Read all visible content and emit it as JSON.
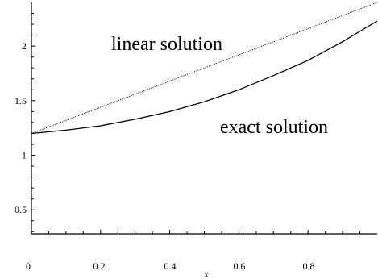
{
  "chart_data": {
    "type": "line",
    "xlabel": "x",
    "ylabel": "",
    "xlim": [
      0,
      1
    ],
    "ylim": [
      0.28,
      2.4
    ],
    "grid": false,
    "x_ticks": [
      0,
      0.2,
      0.4,
      0.6,
      0.8
    ],
    "x_tick_labels": [
      "0",
      "0.2",
      "0.4",
      "0.6",
      "0.8"
    ],
    "y_ticks": [
      0.5,
      1,
      1.5,
      2
    ],
    "y_tick_labels": [
      "0.5",
      "1",
      "1.5",
      "2"
    ],
    "series": [
      {
        "name": "linear solution",
        "style": "dotted",
        "color": "#000000",
        "x": [
          0,
          1
        ],
        "y": [
          1.2,
          2.4
        ]
      },
      {
        "name": "exact solution",
        "style": "solid",
        "color": "#000000",
        "x": [
          0,
          0.1,
          0.2,
          0.3,
          0.4,
          0.5,
          0.6,
          0.7,
          0.8,
          0.9,
          1.0
        ],
        "y": [
          1.2,
          1.23,
          1.27,
          1.33,
          1.4,
          1.49,
          1.6,
          1.73,
          1.87,
          2.04,
          2.23
        ]
      }
    ],
    "annotations": [
      {
        "text": "linear solution",
        "series": 0
      },
      {
        "text": "exact solution",
        "series": 1
      }
    ]
  }
}
